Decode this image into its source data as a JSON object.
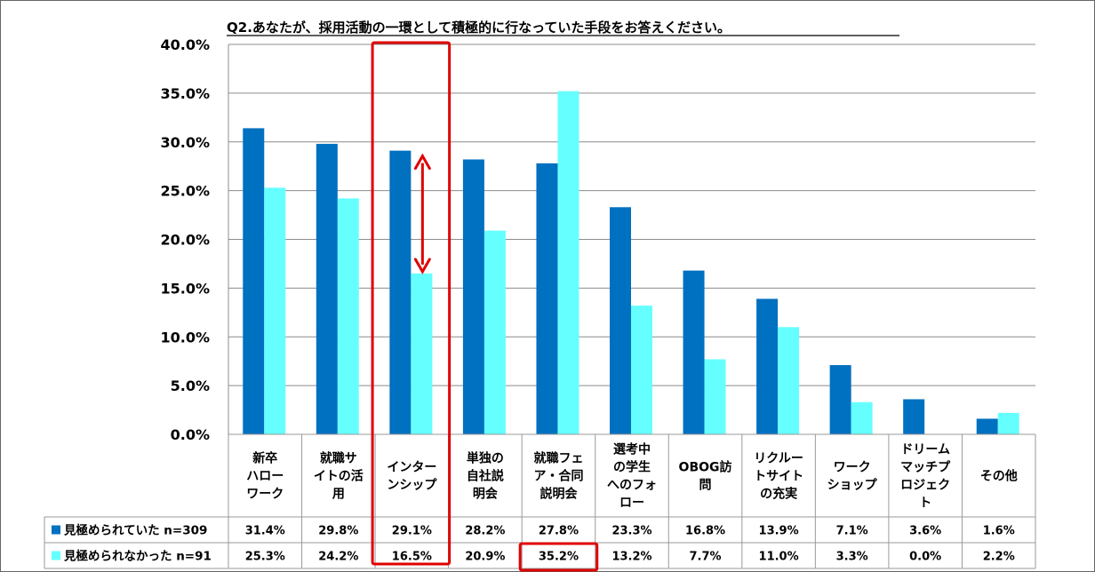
{
  "chart_data": {
    "type": "bar",
    "title": "Q2.あなたが、採用活動の一環として積極的に行なっていた手段をお答えください。",
    "ylim": [
      0,
      40
    ],
    "y_ticks": [
      "0.0%",
      "5.0%",
      "10.0%",
      "15.0%",
      "20.0%",
      "25.0%",
      "30.0%",
      "35.0%",
      "40.0%"
    ],
    "grid": true,
    "legend": "bottom-table",
    "categories": [
      [
        "新卒",
        "ハロー",
        "ワーク"
      ],
      [
        "就職サ",
        "イトの活",
        "用"
      ],
      [
        "インター",
        "ンシップ"
      ],
      [
        "単独の",
        "自社説",
        "明会"
      ],
      [
        "就職フェ",
        "ア・合同",
        "説明会"
      ],
      [
        "選考中",
        "の学生",
        "へのフォ",
        "ロー"
      ],
      [
        "OBOG訪",
        "問"
      ],
      [
        "リクルー",
        "トサイト",
        "の充実"
      ],
      [
        "ワーク",
        "ショップ"
      ],
      [
        "ドリーム",
        "マッチプ",
        "ロジェク",
        "ト"
      ],
      [
        "その他"
      ]
    ],
    "series": [
      {
        "name": "見極められていた n=309",
        "color": "#0070C0",
        "values": [
          31.4,
          29.8,
          29.1,
          28.2,
          27.8,
          23.3,
          16.8,
          13.9,
          7.1,
          3.6,
          1.6
        ],
        "labels": [
          "31.4%",
          "29.8%",
          "29.1%",
          "28.2%",
          "27.8%",
          "23.3%",
          "16.8%",
          "13.9%",
          "7.1%",
          "3.6%",
          "1.6%"
        ]
      },
      {
        "name": "見極められなかった n=91",
        "color": "#66FFFF",
        "values": [
          25.3,
          24.2,
          16.5,
          20.9,
          35.2,
          13.2,
          7.7,
          11.0,
          3.3,
          0.0,
          2.2
        ],
        "labels": [
          "25.3%",
          "24.2%",
          "16.5%",
          "20.9%",
          "35.2%",
          "13.2%",
          "7.7%",
          "11.0%",
          "3.3%",
          "0.0%",
          "2.2%"
        ]
      }
    ],
    "annotations": {
      "highlight_color": "#E00000",
      "highlight_column": "インターンシップ",
      "highlight_cell": "就職フェア・合同説明会 / 見極められなかった n=91",
      "double_arrow": "インターンシップ"
    }
  }
}
